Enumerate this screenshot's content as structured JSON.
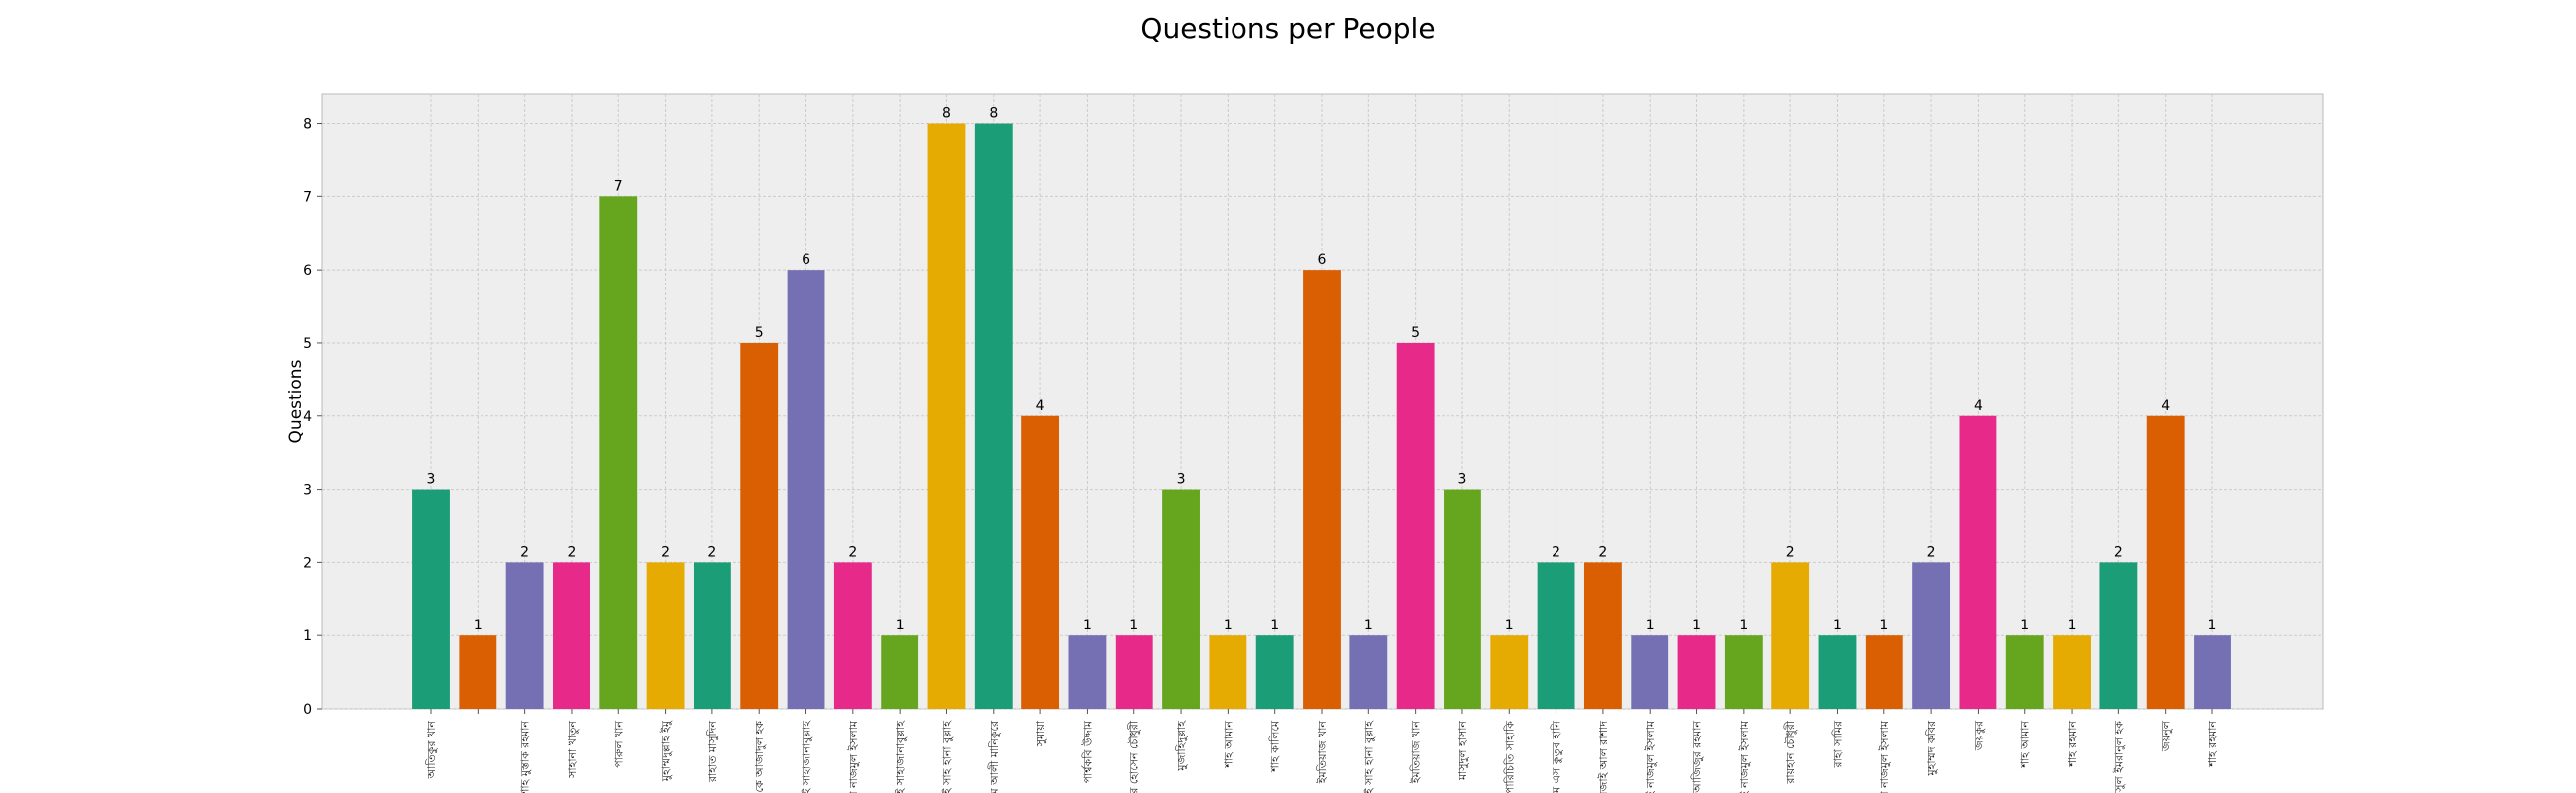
{
  "chart_data": {
    "type": "bar",
    "title": "Questions per People",
    "xlabel": "",
    "ylabel": "Questions",
    "ylim": [
      0,
      8.4
    ],
    "yticks": [
      0,
      1,
      2,
      3,
      4,
      5,
      6,
      7,
      8
    ],
    "grid": true,
    "categories": [
      "আতিকুর খান",
      "",
      "শাহ মুস্তাক রহমান",
      "সাহানা খাতুন",
      "পারুল খান",
      "মুহাম্মদুল্লাহ ইমু",
      "রাহাত মাসুদিন",
      "এ কে আজাদুল হক",
      "টাই সাহাজানাবুল্লাহ",
      "সাকী নাজমুল ইসলাম",
      "টাই সাহাজানাবুল্লাহ",
      "টাই সাহ হানা বুল্লাহ",
      "মুসুম আলী মানিকুরে",
      "সুমায়া",
      "পার্শ্বকবি উদ্দাম",
      "দেলোয়ার হোসেন চৌধুরী",
      "মুজাহিদুল্লাহ",
      "শাহ আমান",
      "শাহ কালিমে",
      "ইমতিয়াজ খান",
      "টাই সাহ হানা বুল্লাহ",
      "ইমতিয়াজ খান",
      "মাসুদুল হাসান",
      "পারিচিতি সাহাকি",
      "এম এস কুতুব হানি",
      "রেজাই আল রাশাদ",
      "টাই নাজমুল ইসলাম",
      "আজিজুর রহমান",
      "টাই নাজমুল ইসলাম",
      "রায়হান চৌধুরী",
      "রাহা সামির",
      "সাকী নাজমুল ইসলাম",
      "মুহাম্মদ কবির",
      "জয়কুর",
      "শাহ আমান",
      "শাহ রহমান",
      "আনিসুল ইমরানুল হক",
      "জয়নুল",
      "শাহ রহমান"
    ],
    "values": [
      3,
      1,
      2,
      2,
      7,
      2,
      2,
      5,
      6,
      2,
      1,
      8,
      8,
      4,
      1,
      1,
      3,
      1,
      1,
      6,
      1,
      5,
      3,
      1,
      2,
      2,
      1,
      1,
      1,
      2,
      1,
      1,
      2,
      4,
      1,
      1,
      2,
      4,
      1
    ],
    "palette": [
      "#1b9e77",
      "#d95f02",
      "#7570b3",
      "#e7298a",
      "#66a61e",
      "#e6ab02"
    ],
    "background": "#eeeeee",
    "grid_color": "#cccccc"
  }
}
